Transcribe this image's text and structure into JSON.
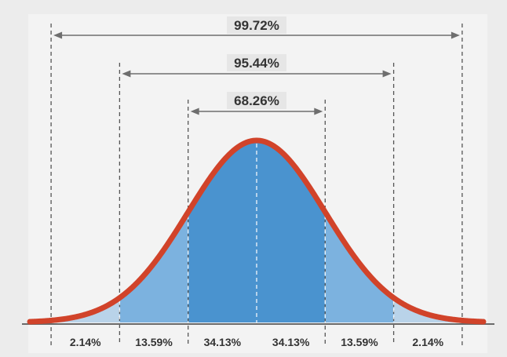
{
  "spans": [
    {
      "label": "99.72%",
      "from_sigma": -3,
      "to_sigma": 3
    },
    {
      "label": "95.44%",
      "from_sigma": -2,
      "to_sigma": 2
    },
    {
      "label": "68.26%",
      "from_sigma": -1,
      "to_sigma": 1
    }
  ],
  "segments": [
    {
      "label": "2.14%",
      "from_sigma": -3,
      "to_sigma": -2
    },
    {
      "label": "13.59%",
      "from_sigma": -2,
      "to_sigma": -1
    },
    {
      "label": "34.13%",
      "from_sigma": -1,
      "to_sigma": 0
    },
    {
      "label": "34.13%",
      "from_sigma": 0,
      "to_sigma": 1
    },
    {
      "label": "13.59%",
      "from_sigma": 1,
      "to_sigma": 2
    },
    {
      "label": "2.14%",
      "from_sigma": 2,
      "to_sigma": 3
    }
  ],
  "colors": {
    "background": "#ececec",
    "curve": "#d1432a",
    "fill_inner": "#4a93cf",
    "fill_middle": "#7cb2df",
    "fill_outer": "#b9d3e9",
    "guide": "#555555",
    "arrow": "#6e6e6e",
    "label_box": "#e6e6e6",
    "text": "#333333",
    "baseline": "#6a6a6a"
  }
}
